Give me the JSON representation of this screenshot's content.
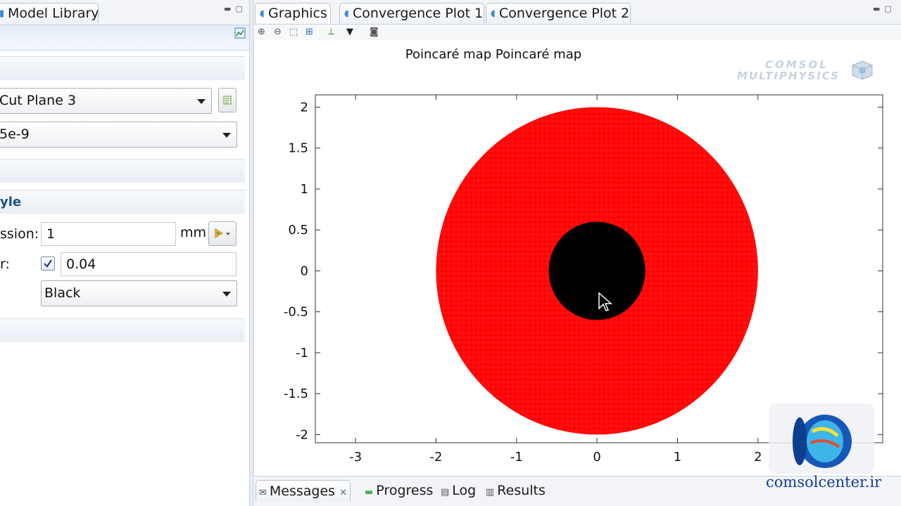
{
  "left_panel": {
    "tab_label": "Model Library",
    "window_controls": "▭ ▢",
    "plot_data_combo": "Cut Plane 3",
    "time_combo": "5e-9",
    "coloring_section_title": "yle",
    "expression_label": "ssion:",
    "expression_value": "1",
    "expression_unit": "mm",
    "radius_label": "r:",
    "radius_checked": true,
    "radius_value": "0.04",
    "color_combo": "Black"
  },
  "graphics": {
    "tabs": [
      {
        "label": "Graphics"
      },
      {
        "label": "Convergence Plot 1"
      },
      {
        "label": "Convergence Plot 2"
      }
    ],
    "plot_title": "Poincaré map Poincaré map",
    "logo_text_line1": "COMSOL",
    "logo_text_line2": "MULTIPHYSICS"
  },
  "bottom_tabs": [
    {
      "label": "Messages"
    },
    {
      "label": "Progress"
    },
    {
      "label": "Log"
    },
    {
      "label": "Results"
    }
  ],
  "watermark": "comsolcenter.ir",
  "chart_data": {
    "type": "scatter",
    "title": "Poincaré map Poincaré map",
    "x_ticks": [
      "-3",
      "-2",
      "-1",
      "0",
      "1",
      "2"
    ],
    "y_ticks": [
      "2",
      "1.5",
      "1",
      "0.5",
      "0",
      "-0.5",
      "-1",
      "-1.5",
      "-2"
    ],
    "xlim": [
      -3.5,
      3.55
    ],
    "ylim": [
      -2.1,
      2.15
    ],
    "series": [
      {
        "description": "ring of points between inner and outer radius",
        "color": "#ff0000",
        "inner_radius": 0.6,
        "outer_radius": 2.0
      },
      {
        "description": "inner disk",
        "color": "#000000",
        "radius": 0.6
      }
    ],
    "grid": false
  }
}
